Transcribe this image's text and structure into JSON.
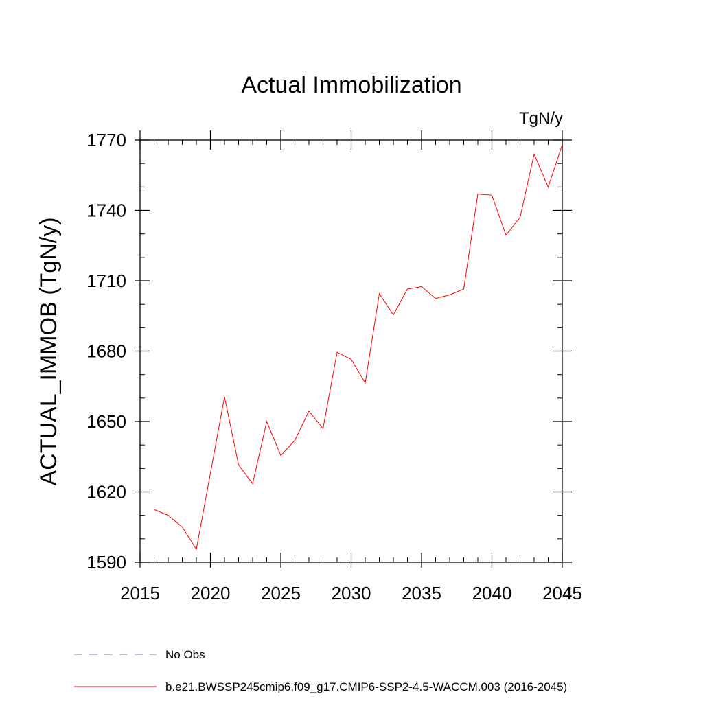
{
  "chart_data": {
    "type": "line",
    "title": "Actual Immobilization",
    "units": "TgN/y",
    "ylabel": "ACTUAL_IMMOB  (TgN/y)",
    "xlabel": "",
    "xlim": [
      2015,
      2045
    ],
    "ylim": [
      1590,
      1770
    ],
    "x_ticks": [
      2015,
      2020,
      2025,
      2030,
      2035,
      2040,
      2045
    ],
    "y_ticks": [
      1590,
      1620,
      1650,
      1680,
      1710,
      1740,
      1770
    ],
    "x_tick_labels": [
      "2015",
      "2020",
      "2025",
      "2030",
      "2035",
      "2040",
      "2045"
    ],
    "y_tick_labels": [
      "1590",
      "1620",
      "1650",
      "1680",
      "1710",
      "1740",
      "1770"
    ],
    "x_minor_step": 1,
    "y_minor_step": 10,
    "grid": false,
    "legend_position": "bottom",
    "series": [
      {
        "name": "b.e21.BWSSP245cmip6.f09_g17.CMIP6-SSP2-4.5-WACCM.003 (2016-2045)",
        "color": "#ff0000",
        "style": "solid",
        "x": [
          2016,
          2017,
          2018,
          2019,
          2020,
          2021,
          2022,
          2023,
          2024,
          2025,
          2026,
          2027,
          2028,
          2029,
          2030,
          2031,
          2032,
          2033,
          2034,
          2035,
          2036,
          2037,
          2038,
          2039,
          2040,
          2041,
          2042,
          2043,
          2044,
          2045
        ],
        "values": [
          1612.5,
          1610,
          1605,
          1595.5,
          1628,
          1660.5,
          1631.5,
          1623.5,
          1650,
          1635.5,
          1642,
          1654.5,
          1647,
          1679.5,
          1676.5,
          1666.5,
          1704.5,
          1695.5,
          1706.5,
          1707.5,
          1702.5,
          1704,
          1706.5,
          1747,
          1746.5,
          1729.5,
          1737,
          1764,
          1750,
          1768
        ]
      },
      {
        "name": "No Obs",
        "color": "#7b68b0",
        "style": "dashed",
        "x": [],
        "values": []
      }
    ],
    "legend": [
      {
        "label": "No Obs",
        "color": "#7b68b0",
        "style": "dashed"
      },
      {
        "label": "b.e21.BWSSP245cmip6.f09_g17.CMIP6-SSP2-4.5-WACCM.003 (2016-2045)",
        "color": "#ff0000",
        "style": "solid"
      }
    ]
  }
}
